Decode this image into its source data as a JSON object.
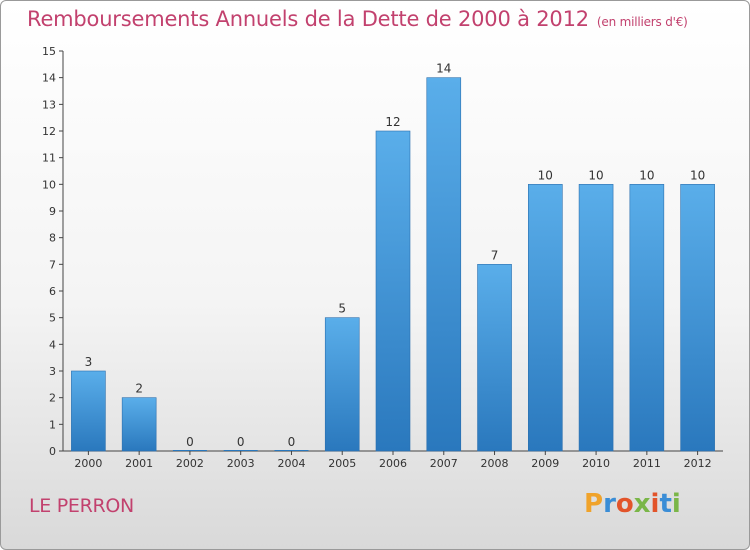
{
  "chart_data": {
    "type": "bar",
    "title": "Remboursements Annuels de la Dette de 2000 à 2012",
    "unit_note": "(en milliers d'€)",
    "categories": [
      "2000",
      "2001",
      "2002",
      "2003",
      "2004",
      "2005",
      "2006",
      "2007",
      "2008",
      "2009",
      "2010",
      "2011",
      "2012"
    ],
    "values": [
      3,
      2,
      0,
      0,
      0,
      5,
      12,
      14,
      7,
      10,
      10,
      10,
      10
    ],
    "ylim": [
      0,
      15
    ],
    "yticks": [
      0,
      1,
      2,
      3,
      4,
      5,
      6,
      7,
      8,
      9,
      10,
      11,
      12,
      13,
      14,
      15
    ],
    "bar_color": "#3d8fd6",
    "grid": false
  },
  "commune": "LE PERRON",
  "logo": {
    "letters": [
      "P",
      "r",
      "o",
      "x",
      "i",
      "t",
      "i"
    ],
    "colors": [
      "#f0a32b",
      "#3a8dd6",
      "#e2542a",
      "#7ab648",
      "#e2542a",
      "#3a8dd6",
      "#7ab648"
    ]
  }
}
